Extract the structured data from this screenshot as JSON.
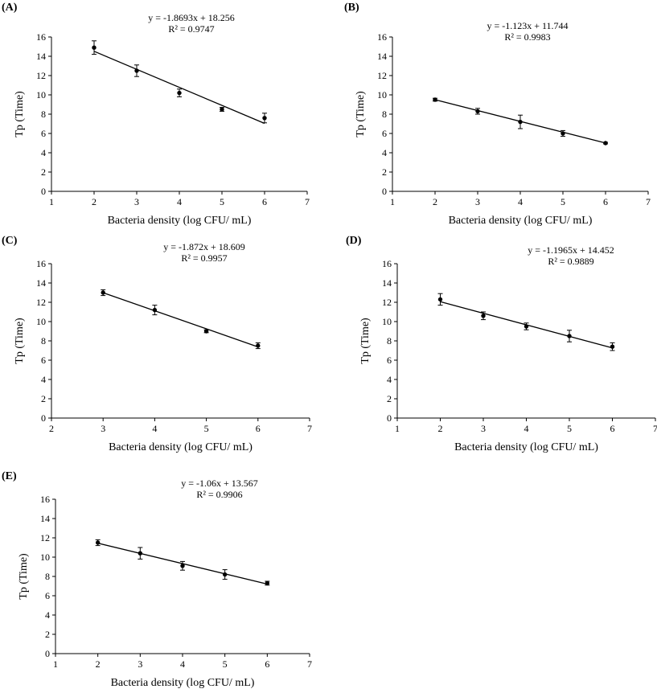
{
  "colors": {
    "axis": "#000000",
    "point": "#000000",
    "background": "#ffffff"
  },
  "chart_data": [
    {
      "panel": "(A)",
      "type": "scatter",
      "title": "",
      "xlabel": "Bacteria density (log CFU/ mL)",
      "ylabel": "Tp  (Time)",
      "xlim": [
        1,
        7
      ],
      "ylim": [
        0,
        16
      ],
      "xticks": [
        1,
        2,
        3,
        4,
        5,
        6,
        7
      ],
      "yticks": [
        0,
        2,
        4,
        6,
        8,
        10,
        12,
        14,
        16
      ],
      "grid": false,
      "series": [
        {
          "name": "Tp",
          "x": [
            2,
            3,
            4,
            5,
            6
          ],
          "y": [
            14.9,
            12.5,
            10.2,
            8.5,
            7.6
          ],
          "err": [
            0.7,
            0.6,
            0.4,
            0.2,
            0.5
          ]
        }
      ],
      "trendline": {
        "slope": -1.8693,
        "intercept": 18.256,
        "x_range": [
          2,
          6
        ]
      },
      "equation": "y = -1.8693x + 18.256",
      "r2": "R² = 0.9747"
    },
    {
      "panel": "(B)",
      "type": "scatter",
      "title": "",
      "xlabel": "Bacteria density (log CFU/ mL)",
      "ylabel": "Tp  (Time)",
      "xlim": [
        1,
        7
      ],
      "ylim": [
        0,
        16
      ],
      "xticks": [
        1,
        2,
        3,
        4,
        5,
        6,
        7
      ],
      "yticks": [
        0,
        2,
        4,
        6,
        8,
        10,
        12,
        14,
        16
      ],
      "grid": false,
      "series": [
        {
          "name": "Tp",
          "x": [
            2,
            3,
            4,
            5,
            6
          ],
          "y": [
            9.5,
            8.3,
            7.2,
            6.0,
            5.0
          ],
          "err": [
            0.15,
            0.3,
            0.7,
            0.3,
            0.08
          ]
        }
      ],
      "trendline": {
        "slope": -1.123,
        "intercept": 11.744,
        "x_range": [
          2,
          6
        ]
      },
      "equation": "y = -1.123x + 11.744",
      "r2": "R² = 0.9983"
    },
    {
      "panel": "(C)",
      "type": "scatter",
      "title": "",
      "xlabel": "Bacteria density (log CFU/ mL)",
      "ylabel": "Tp  (Time)",
      "xlim": [
        2,
        7
      ],
      "ylim": [
        0,
        16
      ],
      "xticks": [
        2,
        3,
        4,
        5,
        6,
        7
      ],
      "yticks": [
        0,
        2,
        4,
        6,
        8,
        10,
        12,
        14,
        16
      ],
      "grid": false,
      "series": [
        {
          "name": "Tp",
          "x": [
            3,
            4,
            5,
            6
          ],
          "y": [
            13.0,
            11.2,
            9.0,
            7.5
          ],
          "err": [
            0.3,
            0.5,
            0.15,
            0.3
          ]
        }
      ],
      "trendline": {
        "slope": -1.872,
        "intercept": 18.609,
        "x_range": [
          3,
          6
        ]
      },
      "equation": "y = -1.872x + 18.609",
      "r2": "R² = 0.9957"
    },
    {
      "panel": "(D)",
      "type": "scatter",
      "title": "",
      "xlabel": "Bacteria density (log CFU/ mL)",
      "ylabel": "Tp  (Time)",
      "xlim": [
        1,
        7
      ],
      "ylim": [
        0,
        16
      ],
      "xticks": [
        1,
        2,
        3,
        4,
        5,
        6,
        7
      ],
      "yticks": [
        0,
        2,
        4,
        6,
        8,
        10,
        12,
        14,
        16
      ],
      "grid": false,
      "series": [
        {
          "name": "Tp",
          "x": [
            2,
            3,
            4,
            5,
            6
          ],
          "y": [
            12.3,
            10.6,
            9.5,
            8.5,
            7.4
          ],
          "err": [
            0.6,
            0.4,
            0.35,
            0.6,
            0.4
          ]
        }
      ],
      "trendline": {
        "slope": -1.1965,
        "intercept": 14.452,
        "x_range": [
          2,
          6
        ]
      },
      "equation": "y = -1.1965x + 14.452",
      "r2": "R² = 0.9889"
    },
    {
      "panel": "(E)",
      "type": "scatter",
      "title": "",
      "xlabel": "Bacteria density (log CFU/ mL)",
      "ylabel": "Tp  (Time)",
      "xlim": [
        1,
        7
      ],
      "ylim": [
        0,
        16
      ],
      "xticks": [
        1,
        2,
        3,
        4,
        5,
        6,
        7
      ],
      "yticks": [
        0,
        2,
        4,
        6,
        8,
        10,
        12,
        14,
        16
      ],
      "grid": false,
      "series": [
        {
          "name": "Tp",
          "x": [
            2,
            3,
            4,
            5,
            6
          ],
          "y": [
            11.5,
            10.4,
            9.1,
            8.2,
            7.3
          ],
          "err": [
            0.3,
            0.6,
            0.45,
            0.5,
            0.2
          ]
        }
      ],
      "trendline": {
        "slope": -1.06,
        "intercept": 13.567,
        "x_range": [
          2,
          6
        ]
      },
      "equation": "y = -1.06x + 13.567",
      "r2": "R² = 0.9906"
    }
  ]
}
